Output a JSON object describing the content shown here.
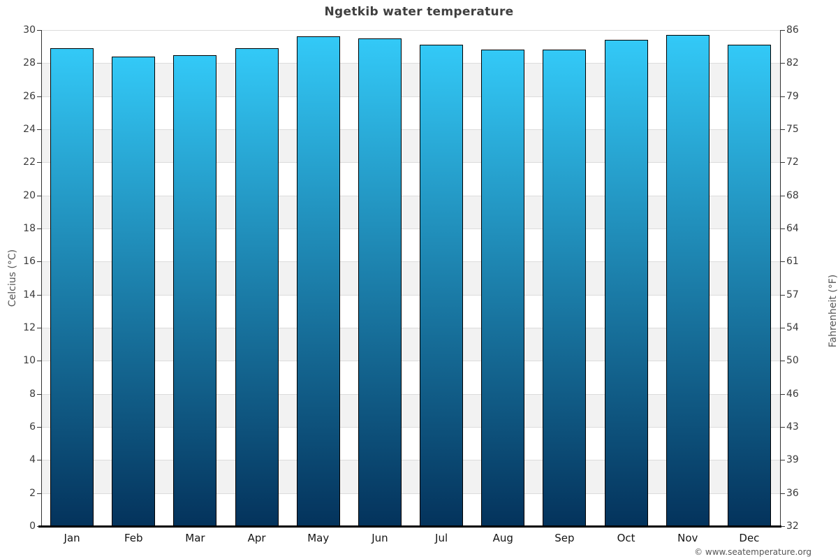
{
  "title": "Ngetkib water temperature",
  "copyright": "© www.seatemperature.org",
  "chart_data": {
    "type": "bar",
    "title": "Ngetkib water temperature",
    "categories": [
      "Jan",
      "Feb",
      "Mar",
      "Apr",
      "May",
      "Jun",
      "Jul",
      "Aug",
      "Sep",
      "Oct",
      "Nov",
      "Dec"
    ],
    "values": [
      28.9,
      28.4,
      28.5,
      28.9,
      29.6,
      29.5,
      29.1,
      28.8,
      28.8,
      29.4,
      29.7,
      29.1
    ],
    "ylabel_left": "Celcius (°C)",
    "ylabel_right": "Fahrenheit (°F)",
    "ylim": [
      0,
      30
    ],
    "celsius_ticks": [
      0,
      2,
      4,
      6,
      8,
      10,
      12,
      14,
      16,
      18,
      20,
      22,
      24,
      26,
      28,
      30
    ],
    "fahrenheit_tick_labels": [
      "32",
      "36",
      "39",
      "43",
      "46",
      "50",
      "54",
      "57",
      "61",
      "64",
      "68",
      "72",
      "75",
      "79",
      "82",
      "86"
    ],
    "legend": "none",
    "grid": "horizontal bands every 2°C, alternating white and gray",
    "colors": {
      "bar_gradient_top": "#33c9f7",
      "bar_gradient_bottom": "#04335c",
      "bar_border": "#000000",
      "band_gray": "#f2f2f2",
      "gridline": "#dcdcdc",
      "axis_line": "#333333",
      "bottom_axis": "#000000",
      "title_text": "#3f3f3f",
      "tick_text": "#3a3a3a",
      "axis_title_text": "#555555"
    }
  }
}
